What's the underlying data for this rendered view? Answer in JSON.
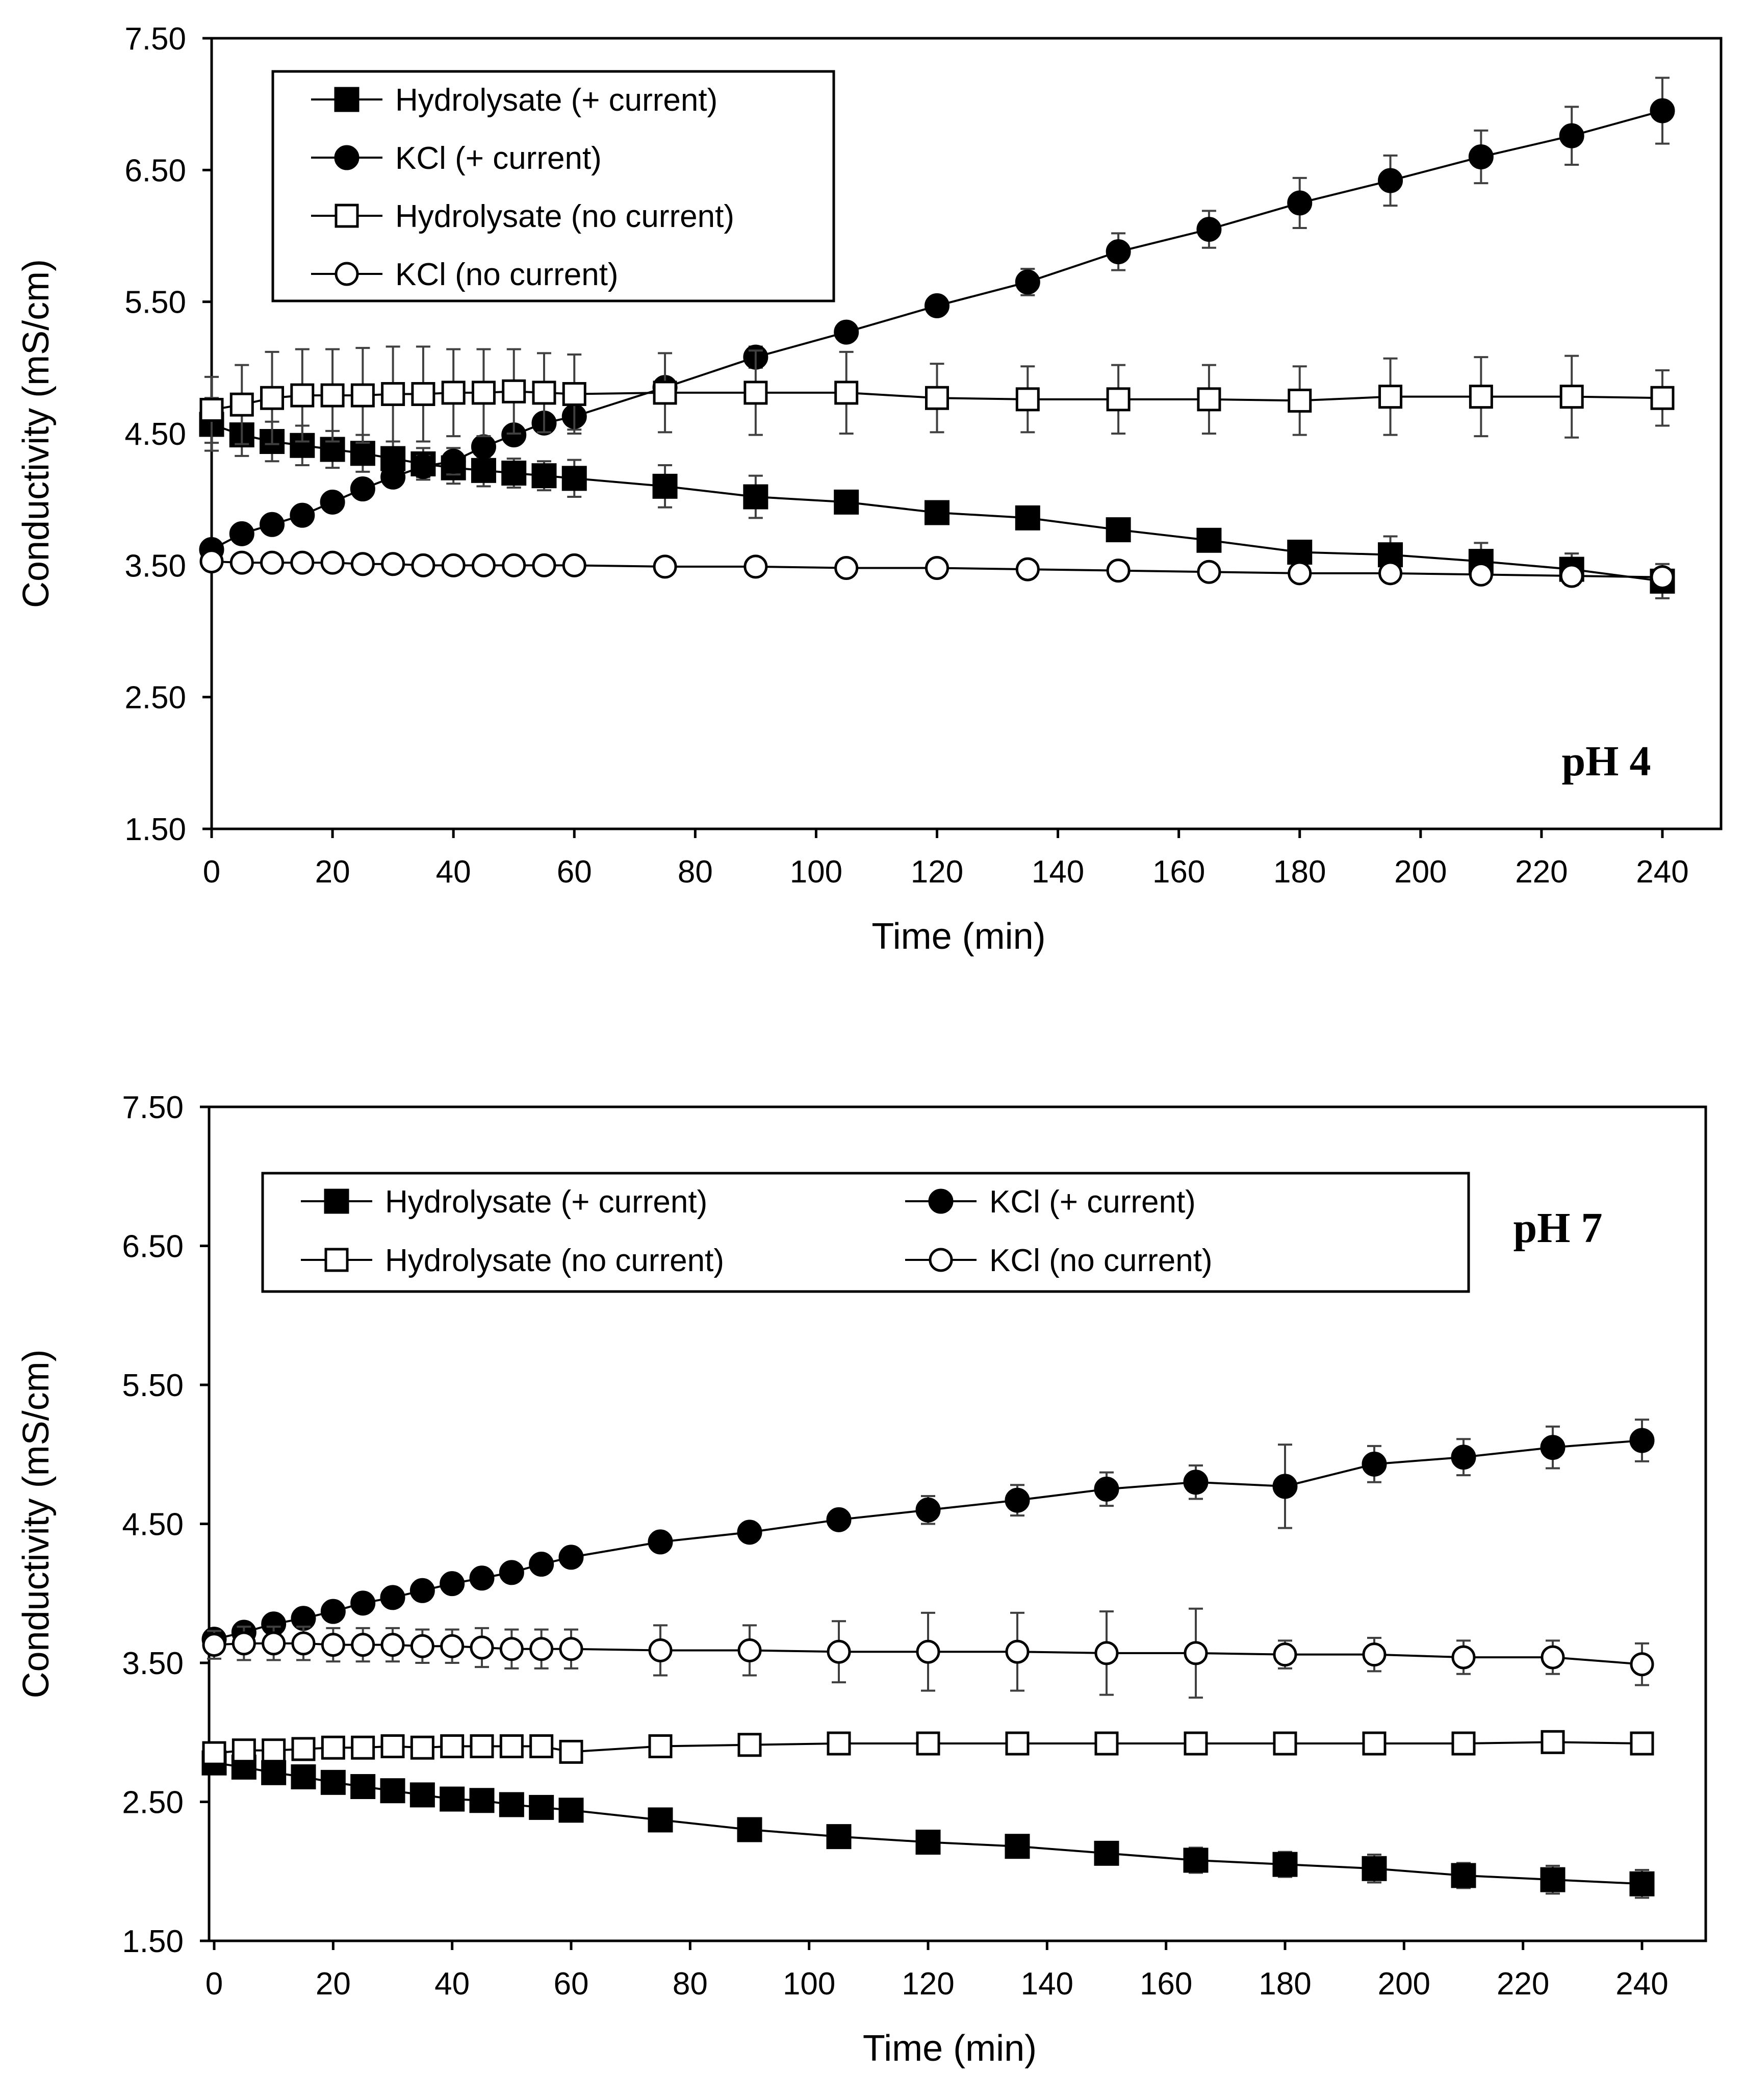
{
  "chart_data": [
    {
      "type": "line",
      "panel_label": "pH 4",
      "xlabel": "Time (min)",
      "ylabel": "Conductivity (mS/cm)",
      "xlim": [
        0,
        240
      ],
      "ylim": [
        1.5,
        7.5
      ],
      "xticks": [
        "0",
        "20",
        "40",
        "60",
        "80",
        "100",
        "120",
        "140",
        "160",
        "180",
        "200",
        "220",
        "240"
      ],
      "yticks": [
        "1.50",
        "2.50",
        "3.50",
        "4.50",
        "5.50",
        "6.50",
        "7.50"
      ],
      "legend_position": "top-left",
      "legend_layout": "single-column",
      "x": [
        0,
        5,
        10,
        15,
        20,
        25,
        30,
        35,
        40,
        45,
        50,
        55,
        60,
        75,
        90,
        105,
        120,
        135,
        150,
        165,
        180,
        195,
        210,
        225,
        240
      ],
      "series": [
        {
          "name": "Hydrolysate (+ current)",
          "marker": "filled-square",
          "values": [
            4.57,
            4.49,
            4.44,
            4.41,
            4.38,
            4.35,
            4.31,
            4.27,
            4.24,
            4.22,
            4.2,
            4.18,
            4.16,
            4.1,
            4.02,
            3.98,
            3.9,
            3.86,
            3.77,
            3.69,
            3.6,
            3.58,
            3.53,
            3.47,
            3.38
          ],
          "errors": [
            0.2,
            0.16,
            0.15,
            0.15,
            0.14,
            0.14,
            0.13,
            0.12,
            0.12,
            0.12,
            0.11,
            0.11,
            0.14,
            0.16,
            0.16,
            0.07,
            0.08,
            0.05,
            0.06,
            0.04,
            0.07,
            0.14,
            0.14,
            0.12,
            0.13
          ]
        },
        {
          "name": "KCl (+ current)",
          "marker": "filled-circle",
          "values": [
            3.62,
            3.74,
            3.81,
            3.88,
            3.98,
            4.08,
            4.17,
            4.25,
            4.29,
            4.4,
            4.49,
            4.58,
            4.63,
            4.85,
            5.08,
            5.27,
            5.47,
            5.65,
            5.88,
            6.05,
            6.25,
            6.42,
            6.6,
            6.76,
            6.95
          ],
          "errors": [
            0.03,
            0.03,
            0.03,
            0.03,
            0.04,
            0.05,
            0.07,
            0.08,
            0.1,
            0.08,
            0.06,
            0.07,
            0.1,
            0.05,
            0.08,
            0.06,
            0.07,
            0.1,
            0.14,
            0.14,
            0.19,
            0.19,
            0.2,
            0.22,
            0.25
          ]
        },
        {
          "name": "Hydrolysate (no current)",
          "marker": "open-square",
          "values": [
            4.68,
            4.72,
            4.77,
            4.79,
            4.79,
            4.79,
            4.8,
            4.8,
            4.81,
            4.81,
            4.82,
            4.81,
            4.8,
            4.81,
            4.81,
            4.81,
            4.77,
            4.76,
            4.76,
            4.76,
            4.75,
            4.78,
            4.78,
            4.78,
            4.77
          ],
          "errors": [
            0.25,
            0.3,
            0.35,
            0.35,
            0.35,
            0.36,
            0.36,
            0.36,
            0.33,
            0.33,
            0.32,
            0.3,
            0.3,
            0.3,
            0.32,
            0.31,
            0.26,
            0.25,
            0.26,
            0.26,
            0.26,
            0.29,
            0.3,
            0.31,
            0.21
          ]
        },
        {
          "name": "KCl (no current)",
          "marker": "open-circle",
          "values": [
            3.53,
            3.52,
            3.52,
            3.52,
            3.52,
            3.51,
            3.51,
            3.5,
            3.5,
            3.5,
            3.5,
            3.5,
            3.5,
            3.49,
            3.49,
            3.48,
            3.48,
            3.47,
            3.46,
            3.45,
            3.44,
            3.44,
            3.43,
            3.42,
            3.41
          ],
          "errors": [
            0.02,
            0.02,
            0.02,
            0.02,
            0.02,
            0.02,
            0.02,
            0.02,
            0.02,
            0.02,
            0.02,
            0.02,
            0.02,
            0.02,
            0.02,
            0.02,
            0.02,
            0.02,
            0.02,
            0.02,
            0.02,
            0.02,
            0.02,
            0.02,
            0.02
          ]
        }
      ]
    },
    {
      "type": "line",
      "panel_label": "pH 7",
      "xlabel": "Time (min)",
      "ylabel": "Conductivity (mS/cm)",
      "xlim": [
        0,
        240
      ],
      "ylim": [
        1.5,
        7.5
      ],
      "xticks": [
        "0",
        "20",
        "40",
        "60",
        "80",
        "100",
        "120",
        "140",
        "160",
        "180",
        "200",
        "220",
        "240"
      ],
      "yticks": [
        "1.50",
        "2.50",
        "3.50",
        "4.50",
        "5.50",
        "6.50",
        "7.50"
      ],
      "legend_position": "top-left",
      "legend_layout": "two-column",
      "x": [
        0,
        5,
        10,
        15,
        20,
        25,
        30,
        35,
        40,
        45,
        50,
        55,
        60,
        75,
        90,
        105,
        120,
        135,
        150,
        165,
        180,
        195,
        210,
        225,
        240
      ],
      "series": [
        {
          "name": "Hydrolysate (+ current)",
          "marker": "filled-square",
          "values": [
            2.78,
            2.75,
            2.71,
            2.68,
            2.64,
            2.61,
            2.58,
            2.55,
            2.52,
            2.51,
            2.48,
            2.46,
            2.44,
            2.37,
            2.3,
            2.25,
            2.21,
            2.18,
            2.13,
            2.08,
            2.05,
            2.02,
            1.97,
            1.94,
            1.91
          ],
          "errors": [
            0.08,
            0.05,
            0.05,
            0.05,
            0.04,
            0.04,
            0.04,
            0.04,
            0.04,
            0.04,
            0.04,
            0.04,
            0.04,
            0.08,
            0.06,
            0.06,
            0.06,
            0.06,
            0.08,
            0.09,
            0.09,
            0.1,
            0.09,
            0.1,
            0.1
          ]
        },
        {
          "name": "KCl (+ current)",
          "marker": "filled-circle",
          "values": [
            3.67,
            3.72,
            3.78,
            3.82,
            3.87,
            3.93,
            3.97,
            4.02,
            4.07,
            4.11,
            4.15,
            4.21,
            4.26,
            4.37,
            4.44,
            4.53,
            4.6,
            4.67,
            4.75,
            4.8,
            4.77,
            4.93,
            4.98,
            5.05,
            5.1
          ],
          "errors": [
            0.03,
            0.03,
            0.03,
            0.03,
            0.03,
            0.03,
            0.03,
            0.03,
            0.03,
            0.03,
            0.03,
            0.03,
            0.03,
            0.05,
            0.04,
            0.04,
            0.1,
            0.11,
            0.12,
            0.12,
            0.3,
            0.13,
            0.13,
            0.15,
            0.15
          ]
        },
        {
          "name": "Hydrolysate (no current)",
          "marker": "open-square",
          "values": [
            2.85,
            2.87,
            2.87,
            2.88,
            2.89,
            2.89,
            2.9,
            2.89,
            2.9,
            2.9,
            2.9,
            2.9,
            2.86,
            2.9,
            2.91,
            2.92,
            2.92,
            2.92,
            2.92,
            2.92,
            2.92,
            2.92,
            2.92,
            2.93,
            2.92
          ],
          "errors": [
            0.03,
            0.03,
            0.03,
            0.03,
            0.03,
            0.03,
            0.03,
            0.03,
            0.03,
            0.03,
            0.03,
            0.03,
            0.03,
            0.03,
            0.03,
            0.03,
            0.03,
            0.03,
            0.03,
            0.03,
            0.03,
            0.03,
            0.03,
            0.03,
            0.03
          ]
        },
        {
          "name": "KCl (no current)",
          "marker": "open-circle",
          "values": [
            3.63,
            3.64,
            3.64,
            3.64,
            3.63,
            3.63,
            3.63,
            3.62,
            3.62,
            3.61,
            3.6,
            3.6,
            3.6,
            3.59,
            3.59,
            3.58,
            3.58,
            3.58,
            3.57,
            3.57,
            3.56,
            3.56,
            3.54,
            3.54,
            3.49
          ],
          "errors": [
            0.1,
            0.12,
            0.12,
            0.12,
            0.12,
            0.12,
            0.12,
            0.12,
            0.12,
            0.14,
            0.14,
            0.14,
            0.14,
            0.18,
            0.18,
            0.22,
            0.28,
            0.28,
            0.3,
            0.32,
            0.1,
            0.12,
            0.12,
            0.12,
            0.15
          ]
        }
      ]
    }
  ]
}
